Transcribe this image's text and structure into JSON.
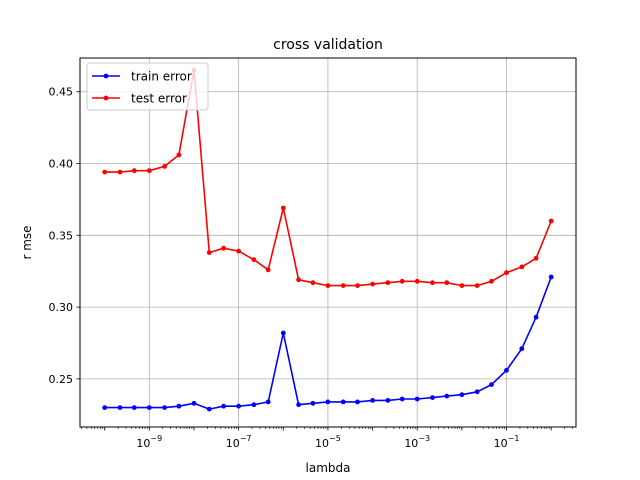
{
  "chart_data": {
    "type": "line",
    "title": "cross validation",
    "xlabel": "lambda",
    "ylabel": "r mse",
    "x_scale": "log",
    "x_ticks": [
      {
        "value": 1e-09,
        "base": "10",
        "exp": "−9"
      },
      {
        "value": 1e-07,
        "base": "10",
        "exp": "−7"
      },
      {
        "value": 1e-05,
        "base": "10",
        "exp": "−5"
      },
      {
        "value": 0.001,
        "base": "10",
        "exp": "−3"
      },
      {
        "value": 0.1,
        "base": "10",
        "exp": "−1"
      }
    ],
    "y_ticks": [
      "0.25",
      "0.30",
      "0.35",
      "0.40",
      "0.45"
    ],
    "xlim": [
      2.8e-11,
      3.6
    ],
    "ylim": [
      0.2165,
      0.4735
    ],
    "grid": true,
    "legend_position": "top-left",
    "x": [
      1e-10,
      2.2e-10,
      4.6e-10,
      1e-09,
      2.2e-09,
      4.6e-09,
      1e-08,
      2.2e-08,
      4.6e-08,
      1e-07,
      2.2e-07,
      4.6e-07,
      1e-06,
      2.2e-06,
      4.6e-06,
      1e-05,
      2.2e-05,
      4.6e-05,
      0.0001,
      0.00022,
      0.00046,
      0.001,
      0.0022,
      0.0046,
      0.01,
      0.022,
      0.046,
      0.1,
      0.22,
      0.46,
      1.0
    ],
    "series": [
      {
        "name": "train error",
        "color": "#0000ff",
        "values": [
          0.23,
          0.23,
          0.23,
          0.23,
          0.23,
          0.231,
          0.233,
          0.229,
          0.231,
          0.231,
          0.232,
          0.234,
          0.282,
          0.232,
          0.233,
          0.234,
          0.234,
          0.234,
          0.235,
          0.235,
          0.236,
          0.236,
          0.237,
          0.238,
          0.239,
          0.241,
          0.246,
          0.256,
          0.271,
          0.293,
          0.321
        ]
      },
      {
        "name": "test error",
        "color": "#ff0000",
        "values": [
          0.394,
          0.394,
          0.395,
          0.395,
          0.398,
          0.406,
          0.465,
          0.338,
          0.341,
          0.339,
          0.333,
          0.326,
          0.369,
          0.319,
          0.317,
          0.315,
          0.315,
          0.315,
          0.316,
          0.317,
          0.318,
          0.318,
          0.317,
          0.317,
          0.315,
          0.315,
          0.318,
          0.324,
          0.328,
          0.334,
          0.36
        ]
      }
    ]
  }
}
